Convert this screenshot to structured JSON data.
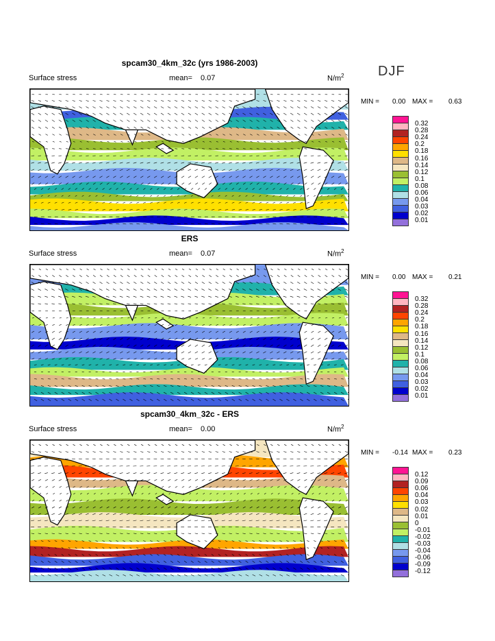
{
  "season": "DJF",
  "palette": [
    "#ff1493",
    "#ffb6c1",
    "#b22222",
    "#ff4500",
    "#ffa500",
    "#ffe000",
    "#deb887",
    "#f5e6c0",
    "#9abf32",
    "#c2f064",
    "#20b2aa",
    "#b0e0e6",
    "#7799ee",
    "#4060e0",
    "#0000cd",
    "#9370db"
  ],
  "panels": [
    {
      "title": "spcam30_4km_32c (yrs 1986-2003)",
      "variable": "Surface stress",
      "mean_label": "mean=",
      "mean": "0.07",
      "units": "N/m",
      "units_exp": "2",
      "min_label": "MIN =",
      "min": "0.00",
      "max_label": "MAX =",
      "max": "0.63",
      "levels": [
        "0.32",
        "0.28",
        "0.24",
        "0.2",
        "0.18",
        "0.16",
        "0.14",
        "0.12",
        "0.1",
        "0.08",
        "0.06",
        "0.04",
        "0.03",
        "0.02",
        "0.01"
      ]
    },
    {
      "title": "ERS",
      "variable": "Surface stress",
      "mean_label": "mean=",
      "mean": "0.07",
      "units": "N/m",
      "units_exp": "2",
      "min_label": "MIN =",
      "min": "0.00",
      "max_label": "MAX =",
      "max": "0.21",
      "levels": [
        "0.32",
        "0.28",
        "0.24",
        "0.2",
        "0.18",
        "0.16",
        "0.14",
        "0.12",
        "0.1",
        "0.08",
        "0.06",
        "0.04",
        "0.03",
        "0.02",
        "0.01"
      ]
    },
    {
      "title": "spcam30_4km_32c - ERS",
      "variable": "Surface stress",
      "mean_label": "mean=",
      "mean": "0.00",
      "units": "N/m",
      "units_exp": "2",
      "min_label": "MIN =",
      "min": "-0.14",
      "max_label": "MAX =",
      "max": "0.23",
      "levels": [
        "0.12",
        "0.09",
        "0.06",
        "0.04",
        "0.03",
        "0.02",
        "0.01",
        "0",
        "-0.01",
        "-0.02",
        "-0.03",
        "-0.04",
        "-0.06",
        "-0.09",
        "-0.12"
      ]
    }
  ]
}
